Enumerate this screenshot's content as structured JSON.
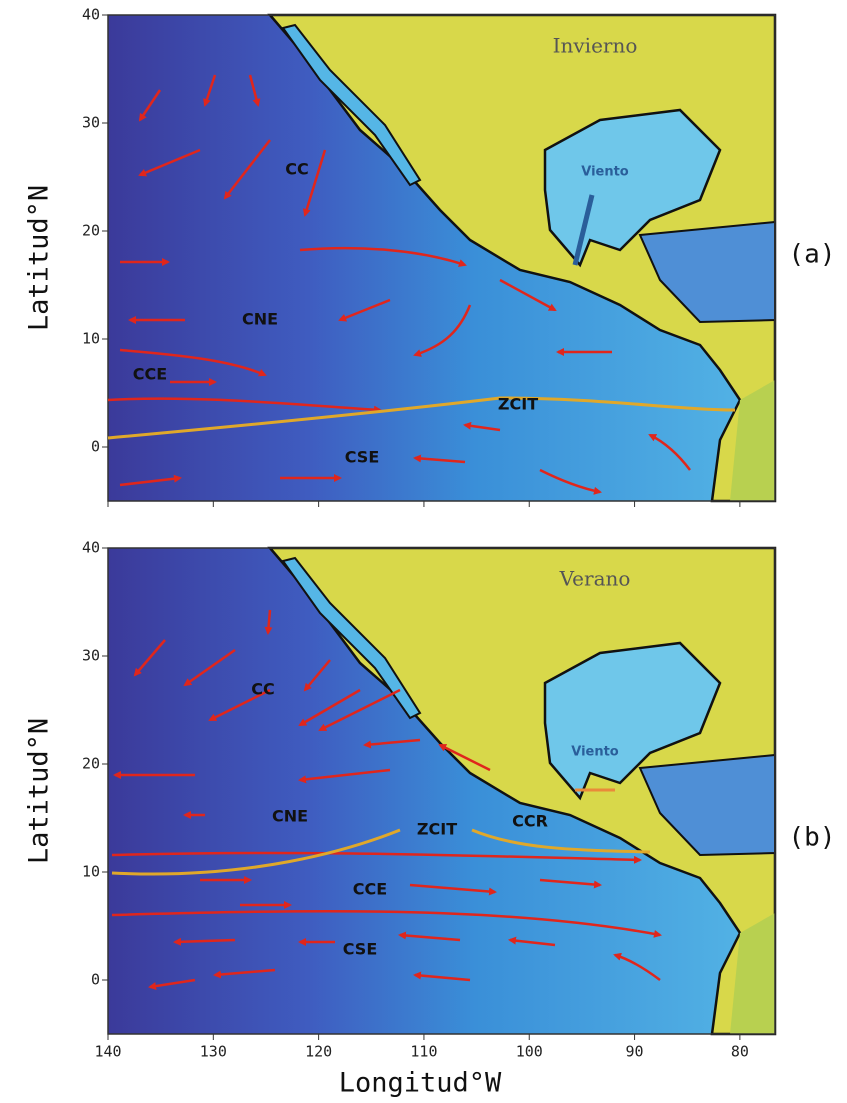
{
  "panels": [
    {
      "season": "Invierno",
      "tag": "(a)",
      "wind": "Viento",
      "currents": [
        "CC",
        "CNE",
        "CCE",
        "ZCIT",
        "CSE"
      ]
    },
    {
      "season": "Verano",
      "tag": "(b)",
      "wind": "Viento",
      "currents": [
        "CC",
        "CNE",
        "ZCIT",
        "CCR",
        "CCE",
        "CSE"
      ]
    }
  ],
  "axes": {
    "ylabel": "Latitud°N",
    "xlabel": "Longitud°W",
    "ylim": [
      -5,
      40
    ],
    "yticks": [
      0,
      10,
      20,
      30,
      40
    ],
    "xlim": [
      140,
      76
    ],
    "xticks": [
      140,
      130,
      120,
      110,
      100,
      90,
      80
    ]
  }
}
